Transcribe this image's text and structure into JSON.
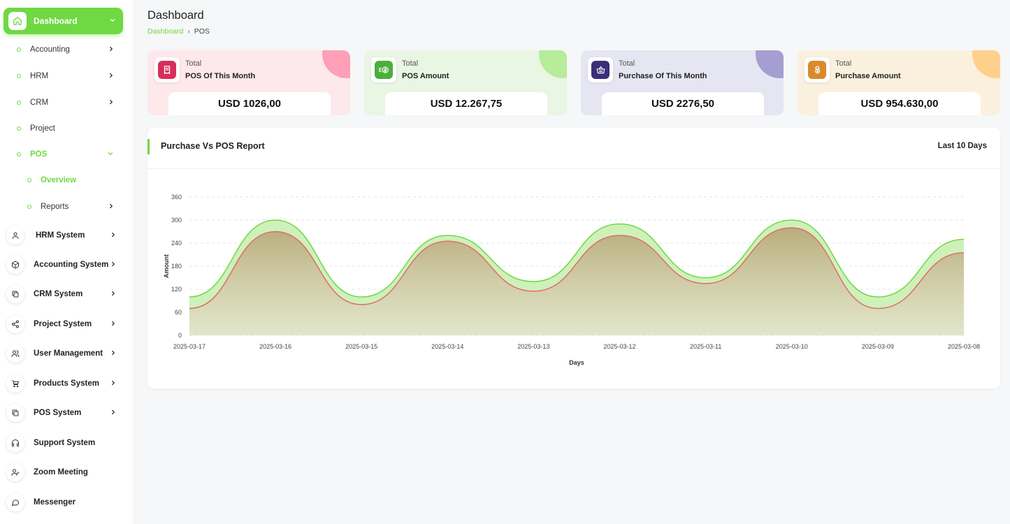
{
  "sidebar": {
    "dashboard_label": "Dashboard",
    "sub_items": [
      {
        "label": "Accounting",
        "has_chevron": true
      },
      {
        "label": "HRM",
        "has_chevron": true
      },
      {
        "label": "CRM",
        "has_chevron": true
      },
      {
        "label": "Project",
        "has_chevron": false
      },
      {
        "label": "POS",
        "expanded": true
      },
      {
        "label": "Overview",
        "active": true
      },
      {
        "label": "Reports",
        "has_chevron": true
      }
    ],
    "systems": [
      {
        "label": "HRM System",
        "icon": "user-icon",
        "has_chevron": true
      },
      {
        "label": "Accounting System",
        "icon": "box-icon",
        "has_chevron": true
      },
      {
        "label": "CRM System",
        "icon": "layers-icon",
        "has_chevron": true
      },
      {
        "label": "Project System",
        "icon": "share-icon",
        "has_chevron": true
      },
      {
        "label": "User Management",
        "icon": "users-icon",
        "has_chevron": true
      },
      {
        "label": "Products System",
        "icon": "cart-icon",
        "has_chevron": true
      },
      {
        "label": "POS System",
        "icon": "layers-icon",
        "has_chevron": true
      },
      {
        "label": "Support System",
        "icon": "headphones-icon",
        "has_chevron": false
      },
      {
        "label": "Zoom Meeting",
        "icon": "user-check-icon",
        "has_chevron": false
      },
      {
        "label": "Messenger",
        "icon": "message-icon",
        "has_chevron": false
      }
    ]
  },
  "header": {
    "title": "Dashboard",
    "breadcrumb": [
      "Dashboard",
      "POS"
    ]
  },
  "cards": [
    {
      "total_label": "Total",
      "name": "POS Of This Month",
      "value": "USD 1026,00",
      "bg": "#fde8ec",
      "corner": "#ff9fb8",
      "icon_bg": "#d92d5b",
      "icon": "receipt-icon"
    },
    {
      "total_label": "Total",
      "name": "POS Amount",
      "value": "USD 12.267,75",
      "bg": "#e9f6e3",
      "corner": "#b6ec9a",
      "icon_bg": "#4caf3a",
      "icon": "money-icon"
    },
    {
      "total_label": "Total",
      "name": "Purchase Of This Month",
      "value": "USD 2276,50",
      "bg": "#e6e6f2",
      "corner": "#a59ed0",
      "icon_bg": "#3b2f7a",
      "icon": "basket-icon"
    },
    {
      "total_label": "Total",
      "name": "Purchase Amount",
      "value": "USD 954.630,00",
      "bg": "#faf0de",
      "corner": "#ffd08c",
      "icon_bg": "#d98a2b",
      "icon": "coins-icon"
    }
  ],
  "report": {
    "title": "Purchase Vs POS Report",
    "range": "Last 10 Days"
  },
  "chart_data": {
    "type": "area",
    "title": "",
    "xlabel": "Days",
    "ylabel": "Amount",
    "x": [
      "2025-03-17",
      "2025-03-16",
      "2025-03-15",
      "2025-03-14",
      "2025-03-13",
      "2025-03-12",
      "2025-03-11",
      "2025-03-10",
      "2025-03-09",
      "2025-03-08"
    ],
    "ylim": [
      0,
      360
    ],
    "yticks": [
      0,
      60,
      120,
      180,
      240,
      300,
      360
    ],
    "grid": true,
    "series": [
      {
        "name": "",
        "color": "#6fd943",
        "values": [
          100,
          300,
          100,
          260,
          140,
          290,
          150,
          300,
          100,
          250
        ]
      },
      {
        "name": "",
        "color": "#e06c6c",
        "values": [
          70,
          270,
          80,
          245,
          115,
          260,
          135,
          280,
          70,
          215
        ]
      }
    ]
  }
}
